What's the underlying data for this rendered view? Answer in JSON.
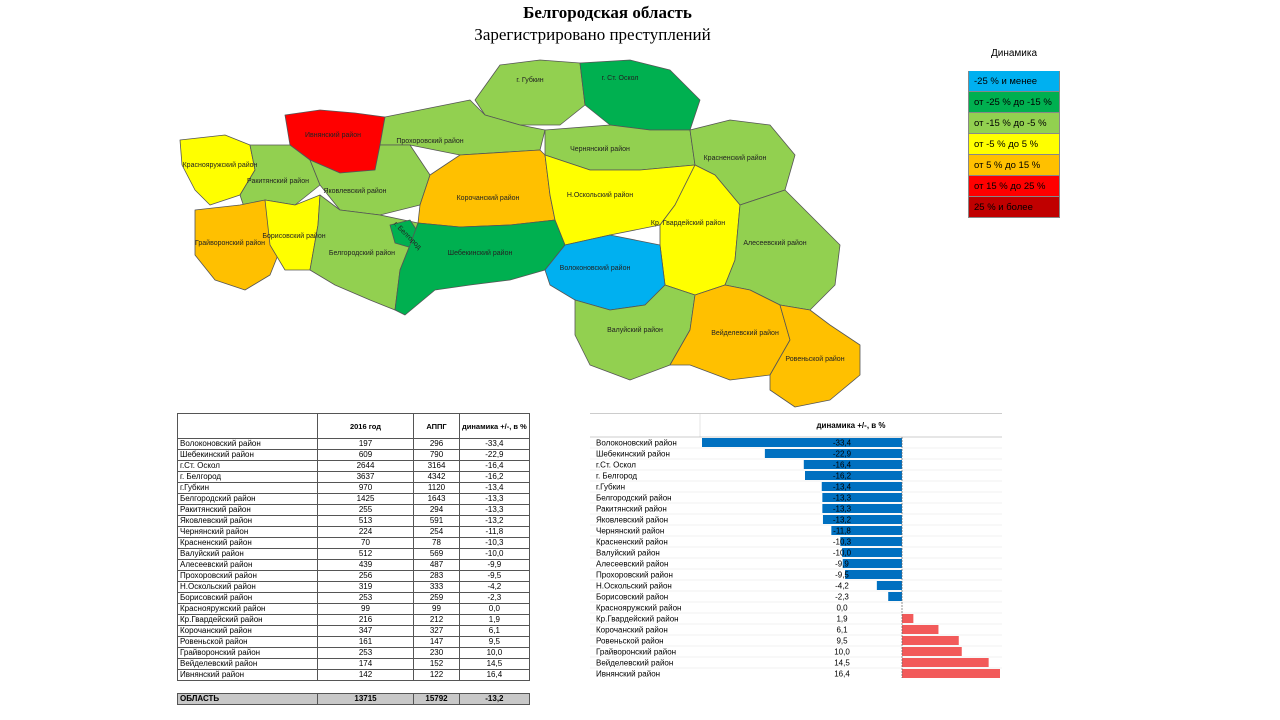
{
  "title": "Белгородская область",
  "subtitle": "Зарегистрировано преступлений",
  "legend": {
    "title": "Динамика",
    "items": [
      {
        "label": "-25 % и менее",
        "color": "#00b0f0"
      },
      {
        "label": "от -25 % до -15 %",
        "color": "#00b050"
      },
      {
        "label": "от -15 % до -5 %",
        "color": "#92d050"
      },
      {
        "label": "от -5 % до 5 %",
        "color": "#ffff00"
      },
      {
        "label": "от 5 % до 15 %",
        "color": "#ffc000"
      },
      {
        "label": "от 15 % до 25 %",
        "color": "#ff0000"
      },
      {
        "label": "25 % и более",
        "color": "#c00000"
      }
    ]
  },
  "map_labels": {
    "gubkin": "г. Губкин",
    "stoskol": "г. Ст. Оскол",
    "ivnya": "Ивнянский район",
    "prohorovka": "Прохоровский район",
    "krasnoyaruzh": "Краснояружский район",
    "rakitnoe": "Ракитянский район",
    "yakovlevo": "Яковлевский район",
    "chernyanka": "Чернянский район",
    "krasnoe": "Красненский район",
    "korocha": "Корочанский район",
    "noskol": "Н.Оскольский район",
    "kgvard": "Кр. Гвардейский район",
    "grayvoron": "Грайворонский район",
    "borisovka": "Борисовский район",
    "belgorod_r": "Белгородский район",
    "belgorod_c": "г. Белгород",
    "shebekino": "Шебекинский район",
    "volokonovka": "Волоконовский район",
    "alekseevka": "Алесеевский район",
    "valuyki": "Валуйский район",
    "veydelevka": "Вейделевский район",
    "rovenki": "Ровеньской район"
  },
  "table": {
    "headers": [
      "",
      "2016 год",
      "АППГ",
      "динамика +/-, в %"
    ],
    "rows": [
      [
        "Волоконовский район",
        "197",
        "296",
        "-33,4"
      ],
      [
        "Шебекинский район",
        "609",
        "790",
        "-22,9"
      ],
      [
        "г.Ст. Оскол",
        "2644",
        "3164",
        "-16,4"
      ],
      [
        "г. Белгород",
        "3637",
        "4342",
        "-16,2"
      ],
      [
        "г.Губкин",
        "970",
        "1120",
        "-13,4"
      ],
      [
        "Белгородский район",
        "1425",
        "1643",
        "-13,3"
      ],
      [
        "Ракитянский район",
        "255",
        "294",
        "-13,3"
      ],
      [
        "Яковлевский район",
        "513",
        "591",
        "-13,2"
      ],
      [
        "Чернянский район",
        "224",
        "254",
        "-11,8"
      ],
      [
        "Красненский район",
        "70",
        "78",
        "-10,3"
      ],
      [
        "Валуйский район",
        "512",
        "569",
        "-10,0"
      ],
      [
        "Алесеевский район",
        "439",
        "487",
        "-9,9"
      ],
      [
        "Прохоровский район",
        "256",
        "283",
        "-9,5"
      ],
      [
        "Н.Оскольский район",
        "319",
        "333",
        "-4,2"
      ],
      [
        "Борисовский район",
        "253",
        "259",
        "-2,3"
      ],
      [
        "Краснояружский район",
        "99",
        "99",
        "0,0"
      ],
      [
        "Кр.Гвардейский район",
        "216",
        "212",
        "1,9"
      ],
      [
        "Корочанский район",
        "347",
        "327",
        "6,1"
      ],
      [
        "Ровеньской район",
        "161",
        "147",
        "9,5"
      ],
      [
        "Грайворонский район",
        "253",
        "230",
        "10,0"
      ],
      [
        "Вейделевский район",
        "174",
        "152",
        "14,5"
      ],
      [
        "Ивнянский район",
        "142",
        "122",
        "16,4"
      ]
    ],
    "total": [
      "ОБЛАСТЬ",
      "13715",
      "15792",
      "-13,2"
    ]
  },
  "chart_data": {
    "type": "bar",
    "orientation": "horizontal",
    "title": "динамика +/-, в %",
    "categories": [
      "Волоконовский район",
      "Шебекинский район",
      "г.Ст. Оскол",
      "г. Белгород",
      "г.Губкин",
      "Белгородский район",
      "Ракитянский район",
      "Яковлевский район",
      "Чернянский район",
      "Красненский район",
      "Валуйский район",
      "Алесеевский район",
      "Прохоровский район",
      "Н.Оскольский район",
      "Борисовский район",
      "Краснояружский район",
      "Кр.Гвардейский район",
      "Корочанский район",
      "Ровеньской район",
      "Грайворонский район",
      "Вейделевский район",
      "Ивнянский район"
    ],
    "values": [
      -33.4,
      -22.9,
      -16.4,
      -16.2,
      -13.4,
      -13.3,
      -13.3,
      -13.2,
      -11.8,
      -10.3,
      -10.0,
      -9.9,
      -9.5,
      -4.2,
      -2.3,
      0.0,
      1.9,
      6.1,
      9.5,
      10.0,
      14.5,
      16.4
    ],
    "value_labels": [
      "-33,4",
      "-22,9",
      "-16,4",
      "-16,2",
      "-13,4",
      "-13,3",
      "-13,3",
      "-13,2",
      "-11,8",
      "-10,3",
      "-10,0",
      "-9,9",
      "-9,5",
      "-4,2",
      "-2,3",
      "0,0",
      "1,9",
      "6,1",
      "9,5",
      "10,0",
      "14,5",
      "16,4"
    ],
    "negative_color": "#0070c0",
    "positive_color": "#f25a5a",
    "xlim": [
      -33.4,
      16.4
    ]
  }
}
